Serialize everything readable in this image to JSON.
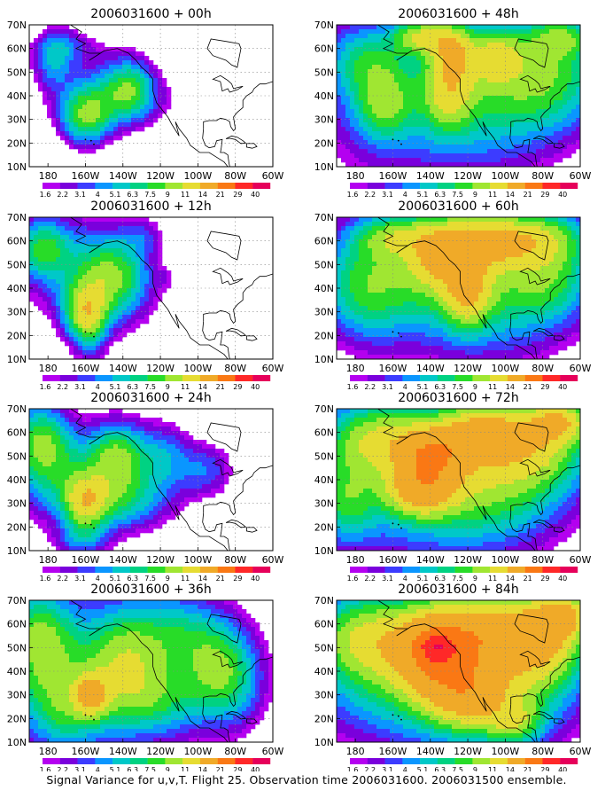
{
  "chart_data": [
    {
      "type": "heatmap",
      "title": "2006031600 + 00h",
      "xticks": [
        "180",
        "160W",
        "140W",
        "120W",
        "100W",
        "80W",
        "60W"
      ],
      "yticks": [
        "10N",
        "20N",
        "30N",
        "40N",
        "50N",
        "60N",
        "70N"
      ],
      "xlim": [
        -190,
        -60
      ],
      "ylim": [
        10,
        70
      ],
      "blobs": [
        [
          -160,
          30,
          9,
          8,
          6
        ],
        [
          -136,
          44,
          9,
          9,
          5
        ],
        [
          -152,
          40,
          16,
          10,
          3
        ],
        [
          -140,
          38,
          24,
          8,
          2
        ],
        [
          -178,
          52,
          7,
          7,
          3
        ],
        [
          -168,
          60,
          14,
          6,
          2
        ],
        [
          -175,
          62,
          8,
          6,
          2
        ]
      ]
    },
    {
      "type": "heatmap",
      "title": "2006031600 + 12h",
      "xticks": [
        "180",
        "160W",
        "140W",
        "120W",
        "100W",
        "80W",
        "60W"
      ],
      "yticks": [
        "10N",
        "20N",
        "30N",
        "40N",
        "50N",
        "60N",
        "70N"
      ],
      "xlim": [
        -190,
        -60
      ],
      "ylim": [
        10,
        70
      ],
      "blobs": [
        [
          -160,
          30,
          8,
          8,
          7
        ],
        [
          -145,
          45,
          12,
          10,
          5
        ],
        [
          -150,
          38,
          20,
          14,
          3
        ],
        [
          -183,
          57,
          9,
          8,
          5
        ],
        [
          -170,
          54,
          24,
          14,
          3
        ],
        [
          -158,
          22,
          6,
          10,
          3
        ],
        [
          -130,
          62,
          9,
          6,
          2
        ],
        [
          -118,
          44,
          3,
          3,
          1
        ]
      ]
    },
    {
      "type": "heatmap",
      "title": "2006031600 + 24h",
      "xticks": [
        "180",
        "160W",
        "140W",
        "120W",
        "100W",
        "80W",
        "60W"
      ],
      "yticks": [
        "10N",
        "20N",
        "30N",
        "40N",
        "50N",
        "60N",
        "70N"
      ],
      "xlim": [
        -190,
        -60
      ],
      "ylim": [
        10,
        70
      ],
      "blobs": [
        [
          -160,
          30,
          8,
          8,
          8
        ],
        [
          -143,
          50,
          10,
          10,
          6
        ],
        [
          -150,
          40,
          26,
          14,
          4
        ],
        [
          -185,
          58,
          10,
          10,
          5
        ],
        [
          -180,
          47,
          14,
          14,
          4
        ],
        [
          -118,
          50,
          10,
          10,
          3
        ],
        [
          -95,
          44,
          10,
          8,
          3
        ],
        [
          -162,
          14,
          10,
          5,
          3
        ],
        [
          -140,
          30,
          16,
          8,
          3
        ]
      ]
    },
    {
      "type": "heatmap",
      "title": "2006031600 + 36h",
      "xticks": [
        "180",
        "160W",
        "140W",
        "120W",
        "100W",
        "80W",
        "60W"
      ],
      "yticks": [
        "10N",
        "20N",
        "30N",
        "40N",
        "50N",
        "60N",
        "70N"
      ],
      "xlim": [
        -190,
        -60
      ],
      "ylim": [
        10,
        70
      ],
      "blobs": [
        [
          -157,
          30,
          6,
          6,
          8
        ],
        [
          -140,
          45,
          14,
          14,
          5
        ],
        [
          -150,
          40,
          45,
          25,
          4
        ],
        [
          -185,
          58,
          12,
          12,
          5
        ],
        [
          -180,
          38,
          14,
          14,
          4
        ],
        [
          -110,
          55,
          18,
          12,
          4
        ],
        [
          -90,
          42,
          12,
          12,
          4
        ],
        [
          -125,
          28,
          22,
          10,
          4
        ],
        [
          -80,
          35,
          12,
          14,
          3
        ],
        [
          -170,
          20,
          12,
          10,
          3
        ]
      ]
    },
    {
      "type": "heatmap",
      "title": "2006031600 + 48h",
      "xticks": [
        "180",
        "160W",
        "140W",
        "120W",
        "100W",
        "80W",
        "60W"
      ],
      "yticks": [
        "10N",
        "20N",
        "30N",
        "40N",
        "50N",
        "60N",
        "70N"
      ],
      "xlim": [
        -190,
        -60
      ],
      "ylim": [
        10,
        70
      ],
      "blobs": [
        [
          -145,
          65,
          10,
          5,
          7
        ],
        [
          -128,
          60,
          8,
          8,
          7
        ],
        [
          -105,
          57,
          10,
          8,
          6
        ],
        [
          -165,
          36,
          10,
          10,
          5
        ],
        [
          -130,
          42,
          9,
          11,
          6
        ],
        [
          -150,
          40,
          40,
          25,
          4
        ],
        [
          -100,
          40,
          30,
          20,
          4
        ],
        [
          -75,
          50,
          20,
          15,
          5
        ],
        [
          -175,
          55,
          14,
          10,
          4
        ],
        [
          -70,
          65,
          12,
          6,
          5
        ]
      ]
    },
    {
      "type": "heatmap",
      "title": "2006031600 + 60h",
      "xticks": [
        "180",
        "160W",
        "140W",
        "120W",
        "100W",
        "80W",
        "60W"
      ],
      "yticks": [
        "10N",
        "20N",
        "30N",
        "40N",
        "50N",
        "60N",
        "70N"
      ],
      "xlim": [
        -190,
        -60
      ],
      "ylim": [
        10,
        70
      ],
      "blobs": [
        [
          -135,
          55,
          12,
          10,
          8
        ],
        [
          -110,
          60,
          16,
          8,
          8
        ],
        [
          -120,
          38,
          8,
          10,
          7
        ],
        [
          -150,
          45,
          35,
          20,
          5
        ],
        [
          -100,
          40,
          30,
          20,
          5
        ],
        [
          -175,
          40,
          15,
          15,
          4
        ],
        [
          -80,
          62,
          18,
          8,
          6
        ],
        [
          -75,
          45,
          15,
          12,
          4
        ],
        [
          -160,
          62,
          14,
          6,
          5
        ]
      ]
    },
    {
      "type": "heatmap",
      "title": "2006031600 + 72h",
      "xticks": [
        "180",
        "160W",
        "140W",
        "120W",
        "100W",
        "80W",
        "60W"
      ],
      "yticks": [
        "10N",
        "20N",
        "30N",
        "40N",
        "50N",
        "60N",
        "70N"
      ],
      "xlim": [
        -190,
        -60
      ],
      "ylim": [
        10,
        70
      ],
      "blobs": [
        [
          -140,
          50,
          12,
          8,
          10
        ],
        [
          -112,
          60,
          16,
          8,
          9
        ],
        [
          -145,
          35,
          12,
          7,
          8
        ],
        [
          -150,
          42,
          40,
          22,
          6
        ],
        [
          -105,
          42,
          30,
          20,
          6
        ],
        [
          -80,
          55,
          18,
          12,
          6
        ],
        [
          -170,
          58,
          18,
          10,
          6
        ],
        [
          -185,
          30,
          10,
          12,
          4
        ],
        [
          -70,
          65,
          12,
          6,
          8
        ]
      ]
    },
    {
      "type": "heatmap",
      "title": "2006031600 + 84h",
      "xticks": [
        "180",
        "160W",
        "140W",
        "120W",
        "100W",
        "80W",
        "60W"
      ],
      "yticks": [
        "10N",
        "20N",
        "30N",
        "40N",
        "50N",
        "60N",
        "70N"
      ],
      "xlim": [
        -190,
        -60
      ],
      "ylim": [
        10,
        70
      ],
      "blobs": [
        [
          -136,
          50,
          6,
          4,
          14
        ],
        [
          -138,
          48,
          14,
          12,
          10
        ],
        [
          -150,
          42,
          40,
          22,
          7
        ],
        [
          -110,
          58,
          20,
          10,
          8
        ],
        [
          -100,
          40,
          30,
          20,
          7
        ],
        [
          -78,
          55,
          14,
          12,
          8
        ],
        [
          -120,
          30,
          14,
          10,
          7
        ],
        [
          -175,
          55,
          18,
          12,
          6
        ],
        [
          -95,
          18,
          10,
          6,
          5
        ],
        [
          -68,
          64,
          10,
          6,
          9
        ]
      ]
    }
  ],
  "colorbar_levels": [
    "1.6",
    "2.2",
    "3.1",
    "4",
    "5.1",
    "6.3",
    "7.5",
    "9",
    "11",
    "14",
    "21",
    "29",
    "40"
  ],
  "colorbar_colors": [
    "#b400f0",
    "#7a00dc",
    "#3c3cff",
    "#0a96ff",
    "#00c8c8",
    "#00d282",
    "#28dc28",
    "#a0e632",
    "#e6dc32",
    "#f0aa28",
    "#fa7814",
    "#ff2828",
    "#e6005a"
  ],
  "footer": "Signal Variance for u,v,T. Flight 25. Observation time 2006031600. 2006031500 ensemble."
}
